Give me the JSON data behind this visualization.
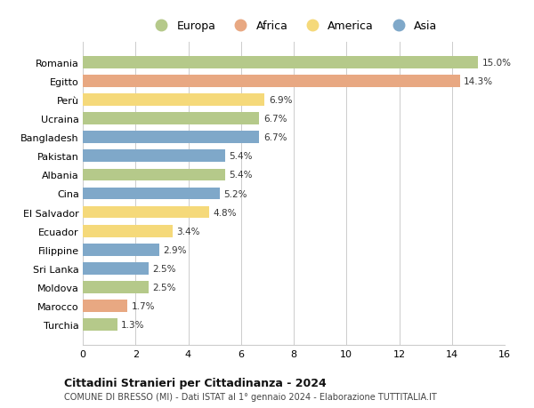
{
  "categories": [
    "Romania",
    "Egitto",
    "Perù",
    "Ucraina",
    "Bangladesh",
    "Pakistan",
    "Albania",
    "Cina",
    "El Salvador",
    "Ecuador",
    "Filippine",
    "Sri Lanka",
    "Moldova",
    "Marocco",
    "Turchia"
  ],
  "values": [
    15.0,
    14.3,
    6.9,
    6.7,
    6.7,
    5.4,
    5.4,
    5.2,
    4.8,
    3.4,
    2.9,
    2.5,
    2.5,
    1.7,
    1.3
  ],
  "continents": [
    "Europa",
    "Africa",
    "America",
    "Europa",
    "Asia",
    "Asia",
    "Europa",
    "Asia",
    "America",
    "America",
    "Asia",
    "Asia",
    "Europa",
    "Africa",
    "Europa"
  ],
  "continent_colors": {
    "Europa": "#b5c98a",
    "Africa": "#e8a882",
    "America": "#f5d97a",
    "Asia": "#7fa8c9"
  },
  "legend_order": [
    "Europa",
    "Africa",
    "America",
    "Asia"
  ],
  "xlim": [
    0,
    16
  ],
  "xticks": [
    0,
    2,
    4,
    6,
    8,
    10,
    12,
    14,
    16
  ],
  "title": "Cittadini Stranieri per Cittadinanza - 2024",
  "subtitle": "COMUNE DI BRESSO (MI) - Dati ISTAT al 1° gennaio 2024 - Elaborazione TUTTITALIA.IT",
  "background_color": "#ffffff",
  "grid_color": "#cccccc",
  "bar_height": 0.65
}
